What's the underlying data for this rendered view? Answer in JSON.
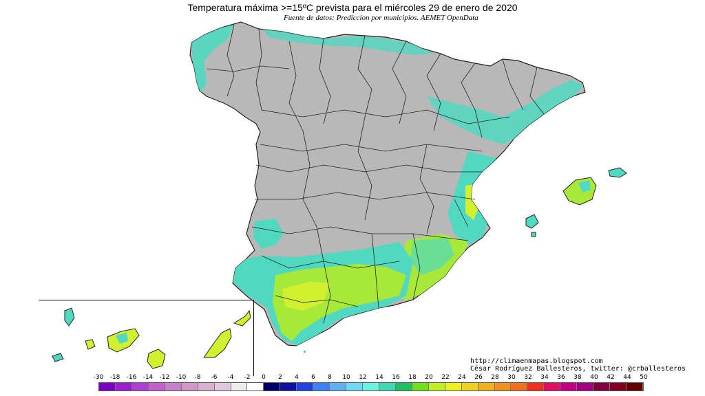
{
  "header": {
    "title": "Temperatura máxima >=15ºC prevista para el miércoles 29 de enero de 2020",
    "source": "Fuente de datos: Prediccion por municipios. AEMET OpenData"
  },
  "credits": {
    "url": "http://climaenmapas.blogspot.com",
    "author": "César Rodríguez Ballesteros, twitter: @crballesteros"
  },
  "legend": {
    "labels": [
      "-30",
      "-18",
      "-16",
      "-14",
      "-12",
      "-10",
      "-8",
      "-6",
      "-4",
      "-2",
      "0",
      "2",
      "4",
      "6",
      "8",
      "10",
      "12",
      "14",
      "16",
      "18",
      "20",
      "22",
      "24",
      "26",
      "28",
      "30",
      "32",
      "34",
      "36",
      "38",
      "40",
      "42",
      "44",
      "50"
    ],
    "colors": [
      "#7a00c0",
      "#9a1ed0",
      "#b040d0",
      "#c060c8",
      "#c880c8",
      "#d098c8",
      "#d8b0d0",
      "#e0c8dc",
      "#ececec",
      "#ffffff",
      "#000060",
      "#1010a0",
      "#2040e0",
      "#4080f0",
      "#60b0f0",
      "#70d8f0",
      "#70f0e0",
      "#40d8b0",
      "#20c060",
      "#70e020",
      "#c0f020",
      "#f0f020",
      "#f0d020",
      "#f0b020",
      "#f09020",
      "#f07020",
      "#f03020",
      "#e01060",
      "#c00080",
      "#a00080",
      "#800040",
      "#800020",
      "#600000"
    ]
  },
  "map_colors": {
    "land": "#b8b8b8",
    "warm_15": "#50d8c0",
    "warm_18": "#a8e838",
    "warm_20": "#d0f030",
    "border": "#222222",
    "sea": "#ffffff"
  }
}
